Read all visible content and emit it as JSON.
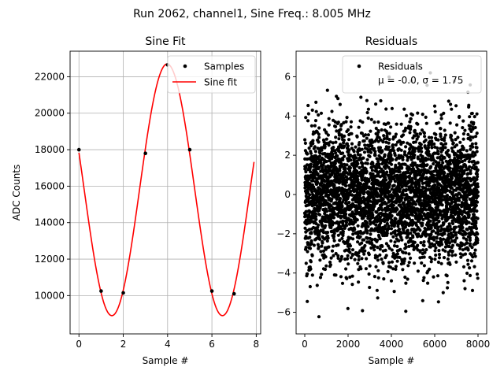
{
  "suptitle": "Run 2062, channel1, Sine Freq.: 8.005 MHz",
  "chart_data": [
    {
      "type": "scatter+line",
      "title": "Sine Fit",
      "xlabel": "Sample #",
      "ylabel": "ADC Counts",
      "xlim": [
        -0.4,
        8.2
      ],
      "ylim": [
        7900,
        23400
      ],
      "xticks": [
        0,
        2,
        4,
        6,
        8
      ],
      "yticks": [
        10000,
        12000,
        14000,
        16000,
        18000,
        20000,
        22000
      ],
      "grid": true,
      "legend_position": "top-right",
      "legend": [
        "Samples",
        "Sine fit"
      ],
      "samples": {
        "name": "Samples",
        "x": [
          0,
          1,
          2,
          3,
          4,
          5,
          6,
          7
        ],
        "y": [
          18000,
          10250,
          10150,
          17800,
          22650,
          18000,
          10250,
          10100
        ]
      },
      "fit": {
        "name": "Sine fit",
        "amplitude": 6900,
        "offset": 15800,
        "period": 4.99,
        "phase_peak_x": 3.98,
        "x_range": [
          0,
          7.9
        ]
      },
      "colors": {
        "samples": "#000000",
        "fit": "#ff0000",
        "grid": "#b0b0b0"
      }
    },
    {
      "type": "scatter",
      "title": "Residuals",
      "xlabel": "Sample #",
      "ylabel": "",
      "xlim": [
        -400,
        8400
      ],
      "ylim": [
        -7.1,
        7.3
      ],
      "xticks": [
        0,
        2000,
        4000,
        6000,
        8000
      ],
      "yticks": [
        -6,
        -4,
        -2,
        0,
        2,
        4,
        6
      ],
      "grid": false,
      "legend_position": "top-right",
      "legend": [
        "Residuals",
        "μ = -0.0, σ = 1.75"
      ],
      "residuals": {
        "name": "Residuals",
        "count": 8000,
        "x_range": [
          0,
          7999
        ],
        "mean": -0.0,
        "std": 1.75,
        "y_clip": [
          -6.5,
          6.2
        ]
      },
      "colors": {
        "points": "#000000"
      }
    }
  ]
}
